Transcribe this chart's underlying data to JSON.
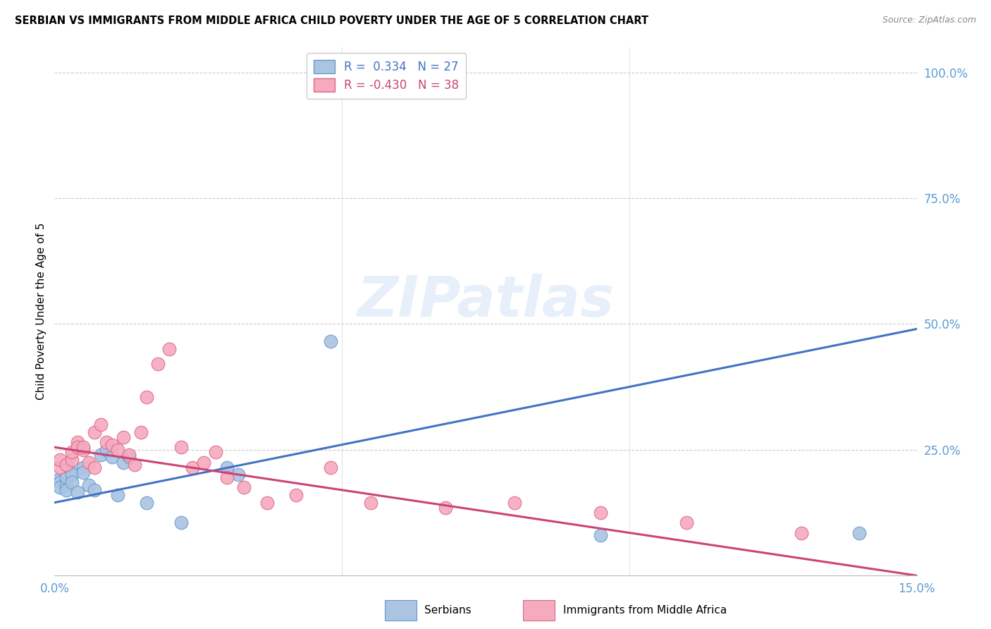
{
  "title": "SERBIAN VS IMMIGRANTS FROM MIDDLE AFRICA CHILD POVERTY UNDER THE AGE OF 5 CORRELATION CHART",
  "source": "Source: ZipAtlas.com",
  "ylabel": "Child Poverty Under the Age of 5",
  "xlim": [
    0.0,
    0.15
  ],
  "ylim": [
    0.0,
    1.05
  ],
  "blue_color": "#aac4e2",
  "pink_color": "#f5aabe",
  "blue_edge_color": "#6699cc",
  "pink_edge_color": "#dd6688",
  "blue_line_color": "#4472c4",
  "pink_line_color": "#cc4477",
  "watermark_text": "ZIPatlas",
  "blue_line_x": [
    0.0,
    0.15
  ],
  "blue_line_y": [
    0.145,
    0.49
  ],
  "pink_line_x": [
    0.0,
    0.15
  ],
  "pink_line_y": [
    0.255,
    0.0
  ],
  "serbians_x": [
    0.0005,
    0.001,
    0.001,
    0.002,
    0.002,
    0.002,
    0.003,
    0.003,
    0.003,
    0.004,
    0.005,
    0.005,
    0.006,
    0.007,
    0.008,
    0.009,
    0.01,
    0.011,
    0.012,
    0.013,
    0.016,
    0.022,
    0.03,
    0.032,
    0.048,
    0.095,
    0.14
  ],
  "serbians_y": [
    0.19,
    0.185,
    0.175,
    0.18,
    0.195,
    0.17,
    0.205,
    0.2,
    0.185,
    0.165,
    0.215,
    0.205,
    0.18,
    0.17,
    0.24,
    0.25,
    0.235,
    0.16,
    0.225,
    0.235,
    0.145,
    0.105,
    0.215,
    0.2,
    0.465,
    0.08,
    0.085
  ],
  "immigrants_x": [
    0.001,
    0.001,
    0.002,
    0.003,
    0.003,
    0.004,
    0.004,
    0.005,
    0.005,
    0.006,
    0.007,
    0.007,
    0.008,
    0.009,
    0.01,
    0.011,
    0.012,
    0.013,
    0.014,
    0.015,
    0.016,
    0.018,
    0.02,
    0.022,
    0.024,
    0.026,
    0.028,
    0.03,
    0.033,
    0.037,
    0.042,
    0.048,
    0.055,
    0.068,
    0.08,
    0.095,
    0.11,
    0.13
  ],
  "immigrants_y": [
    0.215,
    0.23,
    0.22,
    0.23,
    0.245,
    0.265,
    0.255,
    0.25,
    0.255,
    0.225,
    0.215,
    0.285,
    0.3,
    0.265,
    0.26,
    0.25,
    0.275,
    0.24,
    0.22,
    0.285,
    0.355,
    0.42,
    0.45,
    0.255,
    0.215,
    0.225,
    0.245,
    0.195,
    0.175,
    0.145,
    0.16,
    0.215,
    0.145,
    0.135,
    0.145,
    0.125,
    0.105,
    0.085
  ],
  "legend_label_blue": "R =  0.334   N = 27",
  "legend_label_pink": "R = -0.430   N = 38",
  "bottom_label_blue": "Serbians",
  "bottom_label_pink": "Immigrants from Middle Africa"
}
